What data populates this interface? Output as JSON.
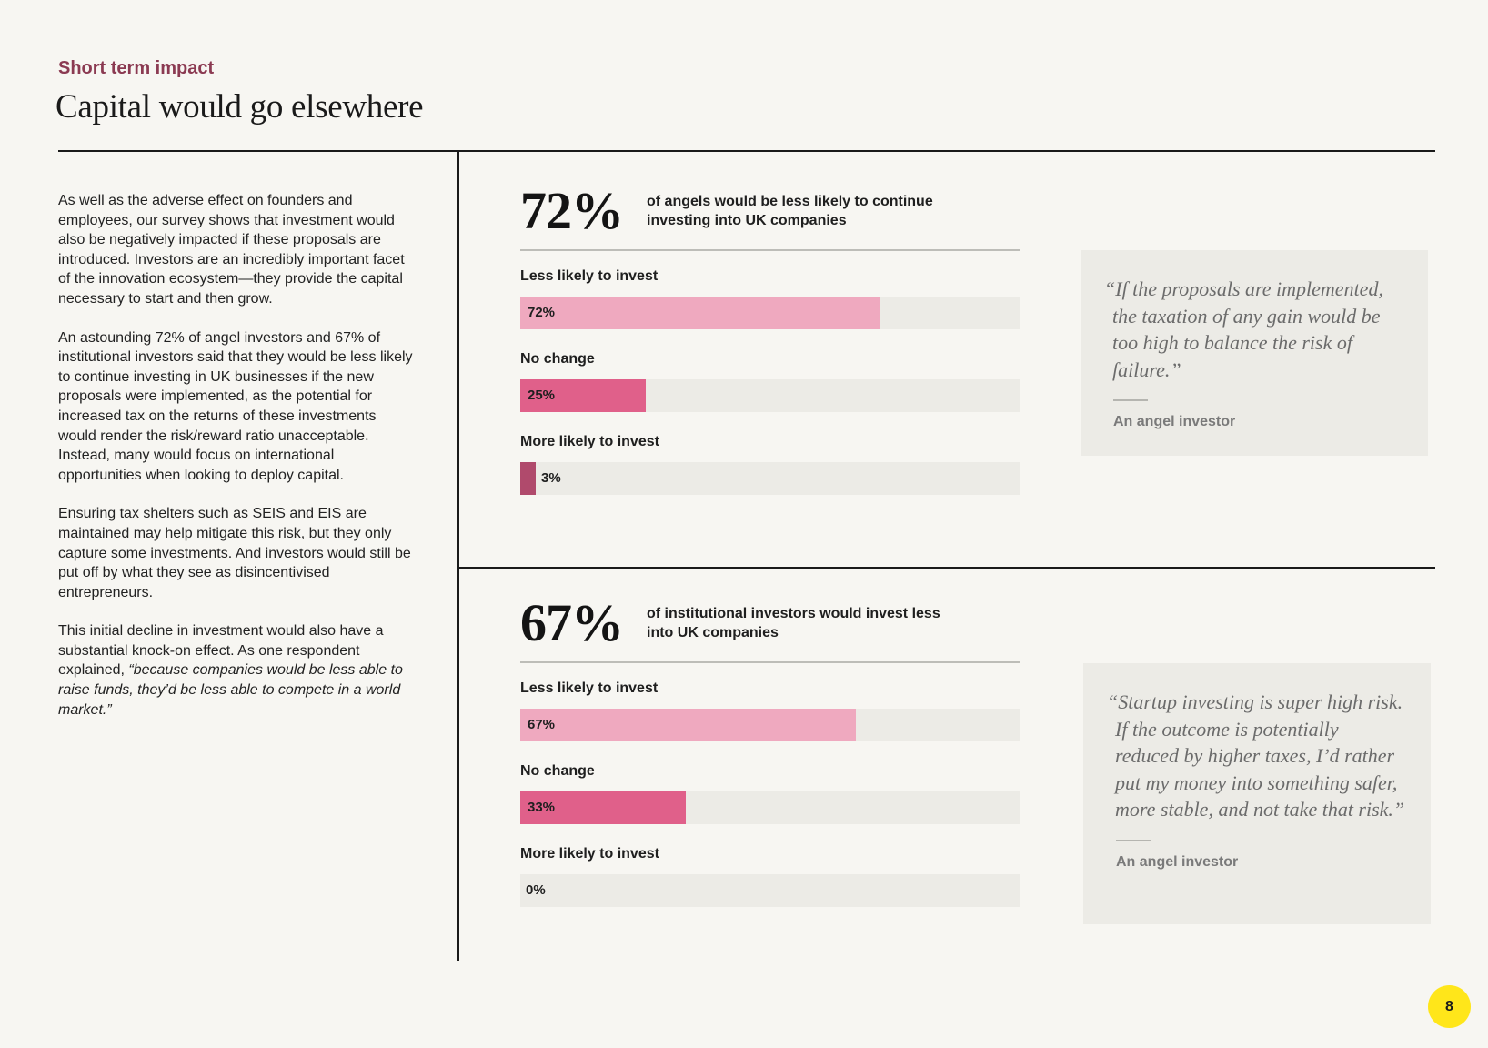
{
  "header": {
    "kicker": "Short term impact",
    "title": "Capital would go elsewhere"
  },
  "body": {
    "p1": "As well as the adverse effect on founders and employees, our survey shows that investment would also be negatively impacted if these proposals are introduced. Investors are an incredibly important facet of the innovation ecosystem—they provide the capital necessary to start and then grow.",
    "p2": "An astounding 72% of angel investors and 67% of institutional investors said that they would be less likely to continue investing in UK businesses if the new proposals were implemented, as the potential for increased tax on the returns of these investments would render the risk/reward ratio unacceptable. Instead, many would focus on international opportunities when looking to deploy capital.",
    "p3": "Ensuring tax shelters such as SEIS and EIS are maintained may help mitigate this risk, but they only capture some investments. And investors would still be put off by what they see as disincentivised entrepreneurs.",
    "p4_lead": "This initial decline in investment would also have a substantial knock-on effect. As one respondent explained, ",
    "p4_quote": "“because companies would be less able to raise funds, they’d be less able to compete in a world market.”"
  },
  "colors": {
    "less_likely": "#efa9bf",
    "no_change": "#e0608a",
    "more_likely": "#b04a6c",
    "accent": "#8b3a52",
    "page_badge": "#ffe61a"
  },
  "chart_data": [
    {
      "type": "bar",
      "headline": "72%",
      "description": "of angels would be less likely to continue investing into UK companies",
      "categories": [
        "Less likely to invest",
        "No change",
        "More likely to invest"
      ],
      "values": [
        72,
        25,
        3
      ],
      "value_labels": [
        "72%",
        "25%",
        "3%"
      ],
      "ylim": [
        0,
        100
      ]
    },
    {
      "type": "bar",
      "headline": "67%",
      "description": "of institutional investors would invest less into UK companies",
      "categories": [
        "Less likely to invest",
        "No change",
        "More likely to invest"
      ],
      "values": [
        67,
        33,
        0
      ],
      "value_labels": [
        "67%",
        "33%",
        "0%"
      ],
      "ylim": [
        0,
        100
      ]
    }
  ],
  "quotes": [
    {
      "text": "“If the proposals are implemented, the taxation of any gain would be too high to balance the risk of failure.”",
      "attribution": "An angel investor"
    },
    {
      "text": "“Startup investing is super high risk. If the outcome is potentially reduced by higher taxes, I’d rather put my money into something safer, more stable, and not take that risk.”",
      "attribution": "An angel investor"
    }
  ],
  "footer": {
    "page_number": "8"
  }
}
